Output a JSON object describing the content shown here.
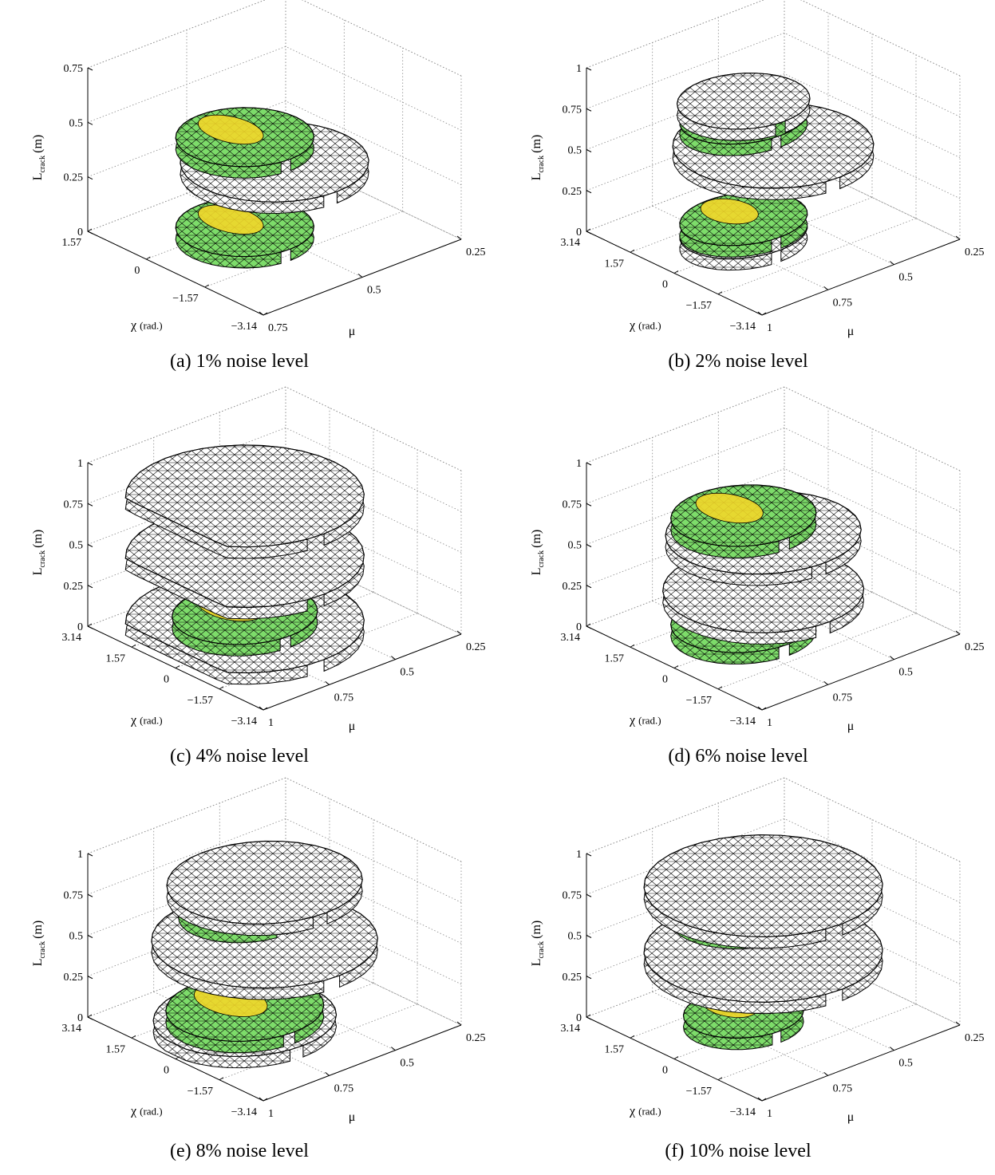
{
  "figures": [
    {
      "id": "a",
      "caption": "(a) 1% noise level",
      "z_ticks": [
        "0",
        "0.25",
        "0.5",
        "0.75"
      ],
      "z_max": 0.75,
      "chi_ticks": [
        "1.57",
        "0",
        "−1.57",
        "−3.14"
      ],
      "mu_ticks": [
        "0.25",
        "0.5",
        "0.75"
      ],
      "zlabel": "L",
      "zlabel_sub": "crack",
      "zlabel_unit": "(m)",
      "xlabel": "χ",
      "xlabel_unit": "(rad.)",
      "ylabel": "μ",
      "layers": [
        {
          "z": 0.05,
          "width": 0.55,
          "length": 0.55,
          "shift": 0.0,
          "fill": "green"
        },
        {
          "z": 0.38,
          "width": 0.75,
          "length": 0.75,
          "shift": 0.15,
          "fill": "white"
        },
        {
          "z": 0.6,
          "width": 0.55,
          "length": 0.55,
          "shift": 0.0,
          "fill": "green"
        }
      ]
    },
    {
      "id": "b",
      "caption": "(b) 2% noise level",
      "z_ticks": [
        "0",
        "0.25",
        "0.5",
        "0.75",
        "1"
      ],
      "z_max": 1,
      "chi_ticks": [
        "3.14",
        "1.57",
        "0",
        "−1.57",
        "−3.14"
      ],
      "mu_ticks": [
        "0.25",
        "0.5",
        "0.75",
        "1"
      ],
      "zlabel": "L",
      "zlabel_sub": "crack",
      "zlabel_unit": "(m)",
      "xlabel": "χ",
      "xlabel_unit": "(rad.)",
      "ylabel": "μ",
      "layers": [
        {
          "z": 0.02,
          "width": 0.45,
          "length": 0.55,
          "shift": 0.0,
          "fill": "white"
        },
        {
          "z": 0.1,
          "width": 0.45,
          "length": 0.55,
          "shift": 0.0,
          "fill": "green"
        },
        {
          "z": 0.48,
          "width": 0.8,
          "length": 0.8,
          "shift": 0.15,
          "fill": "white"
        },
        {
          "z": 0.72,
          "width": 0.45,
          "length": 0.55,
          "shift": 0.0,
          "fill": "green"
        },
        {
          "z": 0.82,
          "width": 0.5,
          "length": 0.55,
          "shift": 0.0,
          "fill": "white"
        }
      ]
    },
    {
      "id": "c",
      "caption": "(c) 4% noise level",
      "z_ticks": [
        "0",
        "0.25",
        "0.5",
        "0.75",
        "1"
      ],
      "z_max": 1,
      "chi_ticks": [
        "3.14",
        "1.57",
        "0",
        "−1.57",
        "−3.14"
      ],
      "mu_ticks": [
        "0.25",
        "0.5",
        "0.75",
        "1"
      ],
      "zlabel": "L",
      "zlabel_sub": "crack",
      "zlabel_unit": "(m)",
      "xlabel": "χ",
      "xlabel_unit": "(rad.)",
      "ylabel": "μ",
      "layers": [
        {
          "z": 0.05,
          "width": 0.95,
          "length": 0.95,
          "shift": 0.0,
          "fill": "white"
        },
        {
          "z": 0.1,
          "width": 0.55,
          "length": 0.6,
          "shift": 0.0,
          "fill": "green"
        },
        {
          "z": 0.45,
          "width": 0.95,
          "length": 0.95,
          "shift": 0.0,
          "fill": "white"
        },
        {
          "z": 0.75,
          "width": 0.55,
          "length": 0.6,
          "shift": 0.0,
          "fill": "green"
        },
        {
          "z": 0.82,
          "width": 0.95,
          "length": 0.95,
          "shift": 0.0,
          "fill": "white"
        }
      ]
    },
    {
      "id": "d",
      "caption": "(d) 6% noise level",
      "z_ticks": [
        "0",
        "0.25",
        "0.5",
        "0.75",
        "1"
      ],
      "z_max": 1,
      "chi_ticks": [
        "3.14",
        "1.57",
        "0",
        "−1.57",
        "−3.14"
      ],
      "mu_ticks": [
        "0.25",
        "0.5",
        "0.75",
        "1"
      ],
      "zlabel": "L",
      "zlabel_sub": "crack",
      "zlabel_unit": "(m)",
      "xlabel": "χ",
      "xlabel_unit": "(rad.)",
      "ylabel": "μ",
      "layers": [
        {
          "z": 0.05,
          "width": 0.55,
          "length": 0.6,
          "shift": 0.0,
          "fill": "green"
        },
        {
          "z": 0.2,
          "width": 0.8,
          "length": 0.8,
          "shift": 0.1,
          "fill": "white"
        },
        {
          "z": 0.55,
          "width": 0.75,
          "length": 0.8,
          "shift": 0.1,
          "fill": "white"
        },
        {
          "z": 0.7,
          "width": 0.55,
          "length": 0.6,
          "shift": 0.0,
          "fill": "green"
        }
      ]
    },
    {
      "id": "e",
      "caption": "(e) 8% noise level",
      "z_ticks": [
        "0",
        "0.25",
        "0.5",
        "0.75",
        "1"
      ],
      "z_max": 1,
      "chi_ticks": [
        "3.14",
        "1.57",
        "0",
        "−1.57",
        "−3.14"
      ],
      "mu_ticks": [
        "0.25",
        "0.5",
        "0.75",
        "1"
      ],
      "zlabel": "L",
      "zlabel_sub": "crack",
      "zlabel_unit": "(m)",
      "xlabel": "χ",
      "xlabel_unit": "(rad.)",
      "ylabel": "μ",
      "layers": [
        {
          "z": 0.02,
          "width": 0.7,
          "length": 0.75,
          "shift": 0.0,
          "fill": "white"
        },
        {
          "z": 0.08,
          "width": 0.6,
          "length": 0.65,
          "shift": 0.0,
          "fill": "green"
        },
        {
          "z": 0.45,
          "width": 0.9,
          "length": 0.9,
          "shift": 0.1,
          "fill": "white"
        },
        {
          "z": 0.72,
          "width": 0.5,
          "length": 0.55,
          "shift": 0.0,
          "fill": "green"
        },
        {
          "z": 0.8,
          "width": 0.75,
          "length": 0.8,
          "shift": 0.1,
          "fill": "white"
        }
      ]
    },
    {
      "id": "f",
      "caption": "(f) 10% noise level",
      "z_ticks": [
        "0",
        "0.25",
        "0.5",
        "0.75",
        "1"
      ],
      "z_max": 1,
      "chi_ticks": [
        "3.14",
        "1.57",
        "0",
        "−1.57",
        "−3.14"
      ],
      "mu_ticks": [
        "0.25",
        "0.5",
        "0.75",
        "1"
      ],
      "zlabel": "L",
      "zlabel_sub": "crack",
      "zlabel_unit": "(m)",
      "xlabel": "χ",
      "xlabel_unit": "(rad.)",
      "ylabel": "μ",
      "layers": [
        {
          "z": 0.05,
          "width": 0.45,
          "length": 0.5,
          "shift": 0.0,
          "fill": "green"
        },
        {
          "z": 0.38,
          "width": 0.95,
          "length": 0.95,
          "shift": 0.1,
          "fill": "white"
        },
        {
          "z": 0.7,
          "width": 0.55,
          "length": 0.6,
          "shift": 0.0,
          "fill": "green"
        },
        {
          "z": 0.78,
          "width": 0.95,
          "length": 0.95,
          "shift": 0.1,
          "fill": "white"
        }
      ]
    }
  ],
  "colors": {
    "green": "#7ddc6a",
    "yellow": "#f2d72a",
    "white": "#ffffff",
    "mesh": "#000000",
    "grid": "#888888"
  }
}
